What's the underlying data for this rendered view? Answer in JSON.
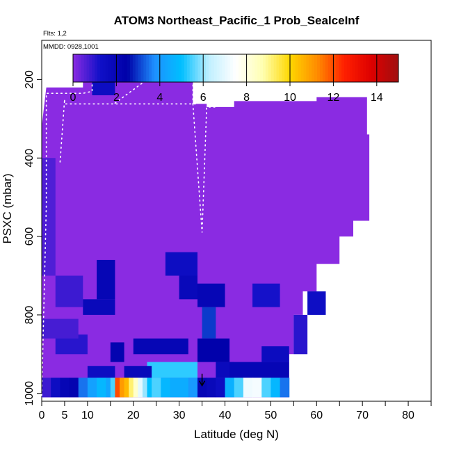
{
  "header": {
    "title": "ATOM3 Northeast_Pacific_1 Prob_SealceInf",
    "flights": "Flts: 1,2",
    "dates": "MMDD: 0928,1001"
  },
  "colorbar": {
    "ticks": [
      "0",
      "2",
      "4",
      "6",
      "8",
      "10",
      "12",
      "14"
    ],
    "range": [
      0,
      15
    ],
    "stops": [
      "#8A2BE2",
      "#1010C8",
      "#0000A8",
      "#1E90FF",
      "#00BFFF",
      "#BFEFFF",
      "#FFFFFF",
      "#FFFFB0",
      "#FFD700",
      "#FF8C00",
      "#FF2000",
      "#DD0000",
      "#A01010"
    ]
  },
  "axes": {
    "xlabel": "Latitude (deg N)",
    "ylabel": "PSXC (mbar)",
    "xticks": [
      "0",
      "5",
      "10",
      "20",
      "30",
      "40",
      "50",
      "60",
      "70",
      "80"
    ],
    "yticks": [
      "200",
      "400",
      "600",
      "800",
      "1000"
    ]
  },
  "colors": {
    "background_fill": "#8A2BE2",
    "track_dots": "#FFFFFF",
    "arrow": "#000000"
  },
  "chart_data": {
    "type": "heatmap",
    "xlim": [
      0,
      85
    ],
    "ylim": [
      1020,
      100
    ],
    "y_reversed": true,
    "domain_outline": [
      [
        0,
        1010
      ],
      [
        0,
        320
      ],
      [
        1,
        220
      ],
      [
        9,
        220
      ],
      [
        9,
        165
      ],
      [
        33,
        165
      ],
      [
        33,
        262
      ],
      [
        36,
        262
      ],
      [
        36,
        270
      ],
      [
        42,
        270
      ],
      [
        42,
        255
      ],
      [
        60,
        255
      ],
      [
        60,
        245
      ],
      [
        71,
        245
      ],
      [
        71,
        340
      ],
      [
        71.5,
        340
      ],
      [
        71.5,
        560
      ],
      [
        68,
        560
      ],
      [
        68,
        600
      ],
      [
        65,
        600
      ],
      [
        65,
        670
      ],
      [
        60,
        670
      ],
      [
        60,
        740
      ],
      [
        57,
        740
      ],
      [
        57,
        800
      ],
      [
        55,
        800
      ],
      [
        55,
        900
      ],
      [
        54,
        900
      ],
      [
        54,
        1010
      ]
    ],
    "cells": [
      {
        "x": [
          3,
          9
        ],
        "p": [
          700,
          780
        ],
        "v": 0.8
      },
      {
        "x": [
          12,
          16
        ],
        "p": [
          660,
          760
        ],
        "v": 2
      },
      {
        "x": [
          9,
          16
        ],
        "p": [
          760,
          800
        ],
        "v": 1.8
      },
      {
        "x": [
          11,
          16
        ],
        "p": [
          180,
          240
        ],
        "v": 1.5
      },
      {
        "x": [
          3,
          10
        ],
        "p": [
          850,
          900
        ],
        "v": 1
      },
      {
        "x": [
          0,
          8
        ],
        "p": [
          810,
          860
        ],
        "v": 0.7
      },
      {
        "x": [
          10,
          16
        ],
        "p": [
          930,
          960
        ],
        "v": 1.5
      },
      {
        "x": [
          15,
          18
        ],
        "p": [
          870,
          920
        ],
        "v": 2.2
      },
      {
        "x": [
          20,
          32
        ],
        "p": [
          860,
          900
        ],
        "v": 2
      },
      {
        "x": [
          23,
          34
        ],
        "p": [
          920,
          960
        ],
        "v": 5.3
      },
      {
        "x": [
          18,
          24
        ],
        "p": [
          930,
          960
        ],
        "v": 1.8
      },
      {
        "x": [
          27,
          34
        ],
        "p": [
          640,
          700
        ],
        "v": 1.5
      },
      {
        "x": [
          30,
          34
        ],
        "p": [
          700,
          760
        ],
        "v": 1.8
      },
      {
        "x": [
          34,
          40
        ],
        "p": [
          720,
          780
        ],
        "v": 2
      },
      {
        "x": [
          35,
          38
        ],
        "p": [
          780,
          860
        ],
        "v": 3
      },
      {
        "x": [
          34,
          41
        ],
        "p": [
          860,
          920
        ],
        "v": 2.4
      },
      {
        "x": [
          38,
          42
        ],
        "p": [
          920,
          960
        ],
        "v": 1.7
      },
      {
        "x": [
          41,
          54
        ],
        "p": [
          920,
          960
        ],
        "v": 2
      },
      {
        "x": [
          48,
          54
        ],
        "p": [
          880,
          920
        ],
        "v": 1.6
      },
      {
        "x": [
          46,
          52
        ],
        "p": [
          720,
          780
        ],
        "v": 1.2
      },
      {
        "x": [
          58,
          62
        ],
        "p": [
          740,
          800
        ],
        "v": 1.4
      },
      {
        "x": [
          55,
          58
        ],
        "p": [
          800,
          900
        ],
        "v": 1
      },
      {
        "x": [
          0,
          3
        ],
        "p": [
          400,
          700
        ],
        "v": 0.6
      }
    ],
    "surface_row": {
      "p": [
        960,
        1010
      ],
      "x": [
        0,
        2,
        4,
        6,
        8,
        10,
        12,
        14,
        15,
        16,
        17,
        18,
        19,
        20,
        21,
        22,
        23,
        24,
        26,
        28,
        30,
        32,
        34,
        36,
        38,
        40,
        42,
        44,
        46,
        48,
        50,
        52,
        54
      ],
      "v": [
        0.8,
        1.5,
        2,
        2.2,
        3.5,
        4.2,
        4.8,
        4.3,
        5.5,
        12,
        11,
        10.5,
        9.2,
        8.3,
        7,
        6,
        5,
        5.5,
        4.8,
        4.5,
        4.5,
        4,
        2,
        1.8,
        1.5,
        4.6,
        5.5,
        7.2,
        7.3,
        5.5,
        4.8,
        3.5,
        1.5
      ]
    },
    "tracks": [
      {
        "x": [
          0,
          1,
          1,
          9,
          9,
          11,
          11,
          14.5,
          16
        ],
        "p": [
          1005,
          520,
          235,
          235,
          235,
          230,
          200,
          200,
          195
        ]
      },
      {
        "x": [
          4,
          5,
          5,
          20,
          20,
          32,
          34,
          34
        ],
        "p": [
          410,
          250,
          262,
          262,
          262,
          262,
          262,
          262
        ]
      },
      {
        "x": [
          16,
          23,
          26,
          33,
          33
        ],
        "p": [
          260,
          200,
          190,
          200,
          262
        ]
      },
      {
        "x": [
          33,
          35,
          36,
          37,
          38
        ],
        "p": [
          262,
          590,
          270,
          270,
          270
        ]
      }
    ],
    "marker": {
      "x": 35,
      "p": 975
    }
  }
}
